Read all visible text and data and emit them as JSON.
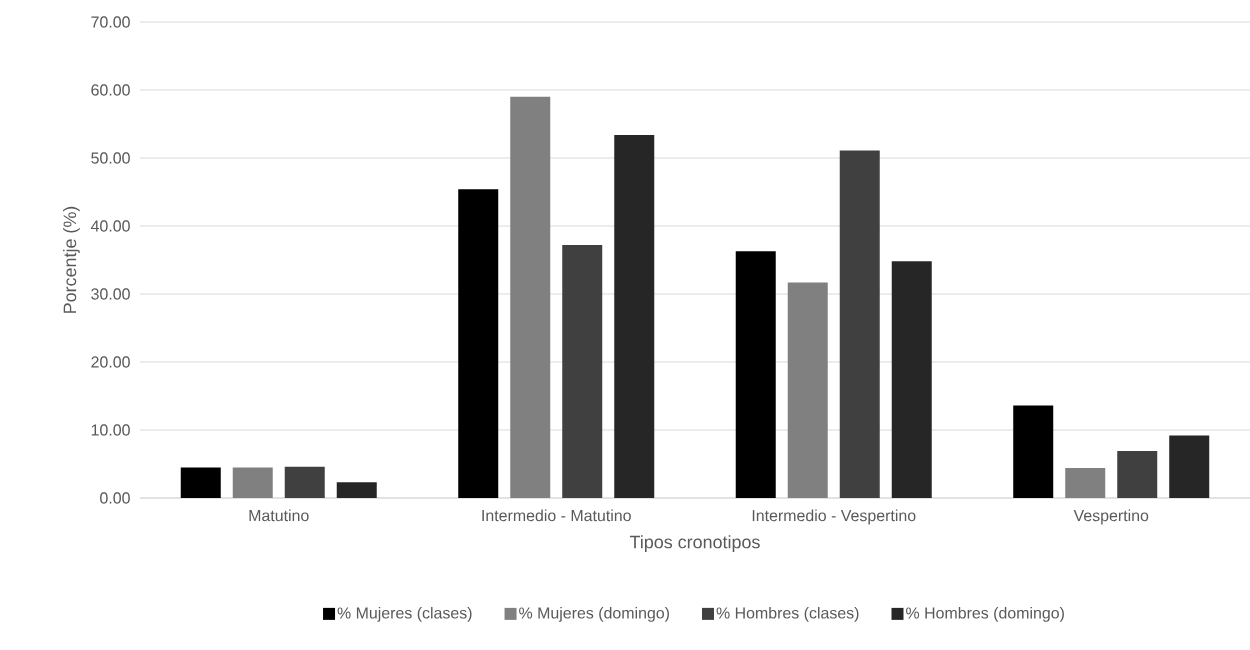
{
  "chart_data": {
    "type": "bar",
    "xlabel": "Tipos cronotipos",
    "ylabel": "Porcentje (%)",
    "categories": [
      "Matutino",
      "Intermedio - Matutino",
      "Intermedio - Vespertino",
      "Vespertino"
    ],
    "series": [
      {
        "name": "% Mujeres (clases)",
        "color": "#000000",
        "values": [
          4.5,
          45.4,
          36.3,
          13.6
        ]
      },
      {
        "name": "% Mujeres (domingo)",
        "color": "#808080",
        "values": [
          4.5,
          59.0,
          31.7,
          4.4
        ]
      },
      {
        "name": "% Hombres (clases)",
        "color": "#404040",
        "values": [
          4.6,
          37.2,
          51.1,
          6.9
        ]
      },
      {
        "name": "% Hombres (domingo)",
        "color": "#262626",
        "values": [
          2.3,
          53.4,
          34.8,
          9.2
        ]
      }
    ],
    "ylim": [
      0,
      70
    ],
    "yticks": [
      {
        "value": 0,
        "label": "0.00"
      },
      {
        "value": 10,
        "label": "10.00"
      },
      {
        "value": 20,
        "label": "20.00"
      },
      {
        "value": 30,
        "label": "30.00"
      },
      {
        "value": 40,
        "label": "40.00"
      },
      {
        "value": 50,
        "label": "50.00"
      },
      {
        "value": 60,
        "label": "60.00"
      },
      {
        "value": 70,
        "label": "70.00"
      }
    ],
    "grid": "y",
    "legend": "bottom"
  }
}
